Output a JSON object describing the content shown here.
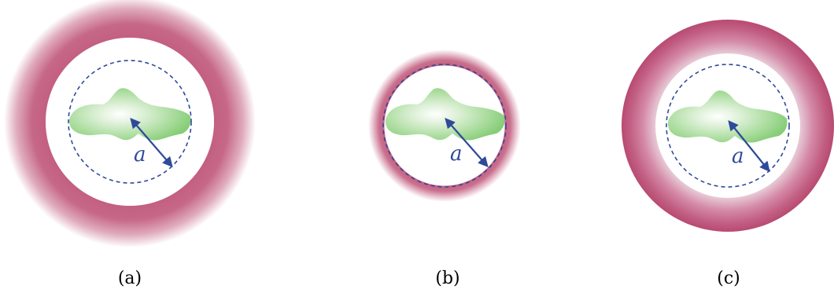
{
  "panels": [
    {
      "caption": "(a)",
      "radius_label": "a"
    },
    {
      "caption": "(b)",
      "radius_label": "a"
    },
    {
      "caption": "(c)",
      "radius_label": "a"
    }
  ],
  "colors": {
    "shell": "#c0577a",
    "shell_light": "#ead0da",
    "dashed_circle": "#2f4a9a",
    "arrow": "#2f4a9a",
    "blob_center": "#ffffff",
    "blob_edge": "#7ec76e",
    "caption_text": "#000000"
  }
}
